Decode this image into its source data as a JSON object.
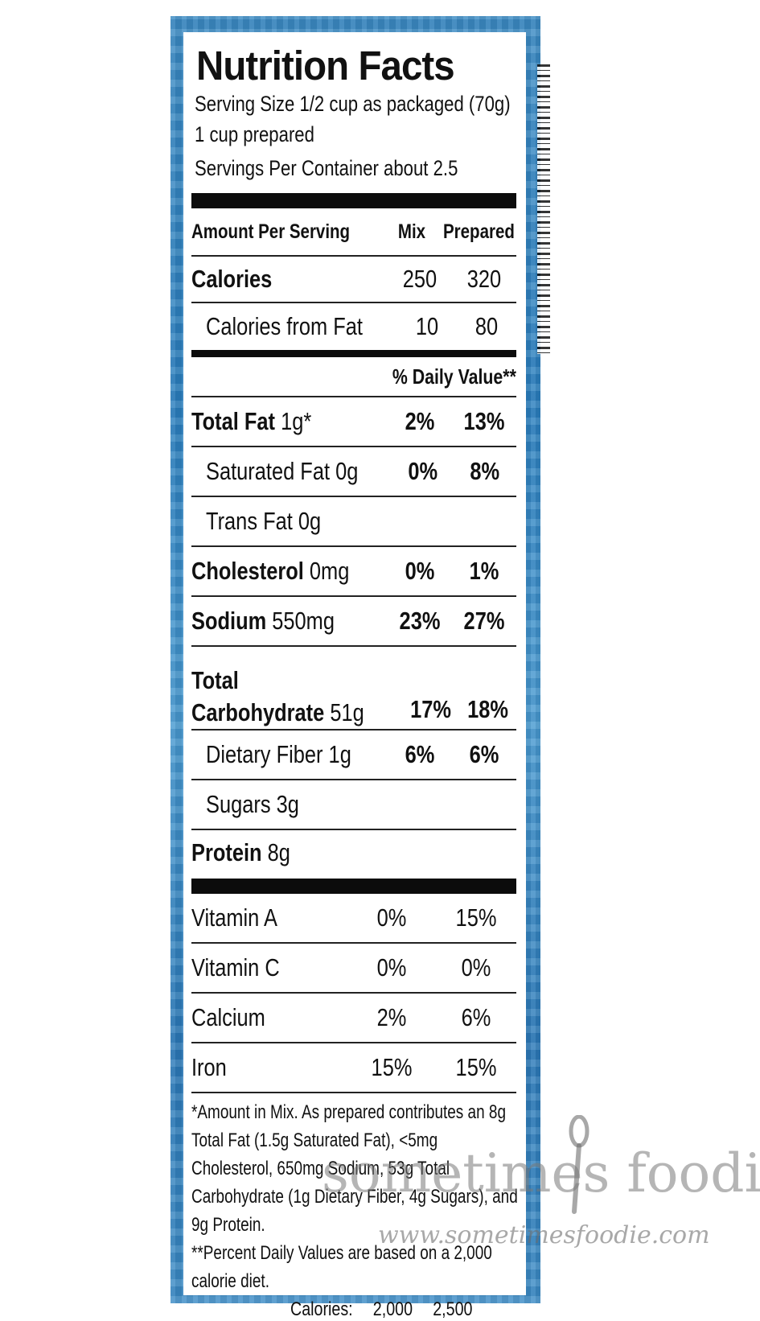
{
  "title": "Nutrition Facts",
  "serving_size": "Serving Size 1/2 cup as packaged (70g)",
  "serving_size_prepared": "1 cup prepared",
  "servings_per_container": "Servings Per Container about 2.5",
  "header": {
    "amount": "Amount Per Serving",
    "col1": "Mix",
    "col2": "Prepared"
  },
  "calories": {
    "label": "Calories",
    "mix": "250",
    "prepared": "320"
  },
  "calories_from_fat": {
    "label": "Calories from Fat",
    "mix": "10",
    "prepared": "80"
  },
  "daily_value_header": "% Daily Value**",
  "nutrients": [
    {
      "bold": "Total Fat",
      "amount": " 1g*",
      "mix": "2%",
      "prepared": "13%"
    },
    {
      "bold": "",
      "amount": "Saturated Fat 0g",
      "mix": "0%",
      "prepared": "8%"
    },
    {
      "bold": "",
      "amount": "Trans Fat 0g",
      "mix": "",
      "prepared": ""
    },
    {
      "bold": "Cholesterol",
      "amount": " 0mg",
      "mix": "0%",
      "prepared": "1%"
    },
    {
      "bold": "Sodium",
      "amount": " 550mg",
      "mix": "23%",
      "prepared": "27%"
    },
    {
      "bold": "Total",
      "bold2": "Carbohydrate",
      "amount": " 51g",
      "mix": "17%",
      "prepared": "18%"
    },
    {
      "bold": "",
      "amount": "Dietary Fiber 1g",
      "mix": "6%",
      "prepared": "6%"
    },
    {
      "bold": "",
      "amount": "Sugars 3g",
      "mix": "",
      "prepared": ""
    },
    {
      "bold": "Protein",
      "amount": " 8g",
      "mix": "",
      "prepared": ""
    }
  ],
  "vitamins": [
    {
      "name": "Vitamin A",
      "mix": "0%",
      "prepared": "15%"
    },
    {
      "name": "Vitamin C",
      "mix": "0%",
      "prepared": "0%"
    },
    {
      "name": "Calcium",
      "mix": "2%",
      "prepared": "6%"
    },
    {
      "name": "Iron",
      "mix": "15%",
      "prepared": "15%"
    }
  ],
  "footnote_1": "*Amount in Mix. As prepared contributes an 8g Total Fat (1.5g Saturated Fat), <5mg Cholesterol, 650mg Sodium, 53g Total Carbohydrate (1g Dietary Fiber, 4g Sugars), and 9g Protein.",
  "footnote_2": "**Percent Daily Values are based on a 2,000 calorie diet.",
  "calories_line": {
    "label": "Calories:",
    "v1": "2,000",
    "v2": "2,500"
  },
  "watermark": {
    "text": "sometimes foodie",
    "url": "www.sometimesfoodie.com"
  },
  "colors": {
    "box_blue": "#2b7fbe",
    "ink": "#111111"
  }
}
